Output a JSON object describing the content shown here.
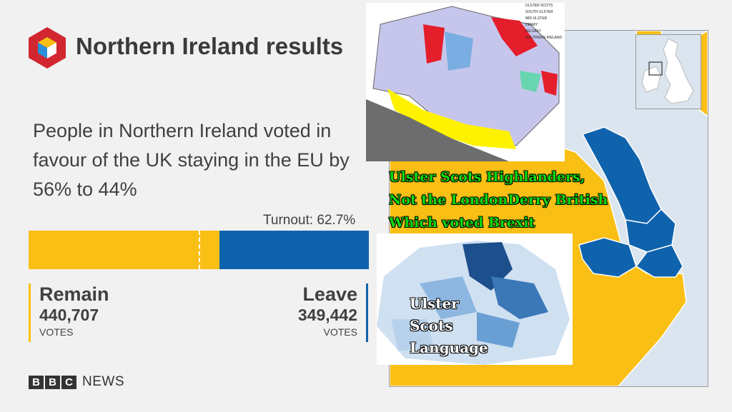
{
  "header": {
    "title": "Northern Ireland results"
  },
  "summary": {
    "text": "People in Northern Ireland voted in favour of the UK staying in the EU by 56% to 44%"
  },
  "turnout": {
    "label": "Turnout: 62.7%"
  },
  "result_bar": {
    "remain_share": 0.56,
    "remain_color": "#f9bf14",
    "leave_color": "#0f63ad"
  },
  "remain": {
    "label": "Remain",
    "votes": "440,707",
    "unit": "VOTES"
  },
  "leave": {
    "label": "Leave",
    "votes": "349,442",
    "unit": "VOTES"
  },
  "brand": {
    "letters": [
      "B",
      "B",
      "C"
    ],
    "word": "NEWS"
  },
  "legend": {
    "items": [
      "ULSTER SCOTS",
      "SOUTH ULSTER",
      "MID ULSTER",
      "DERRY",
      "BELFAST",
      "SOUTHERN IRELAND"
    ]
  },
  "overlay_caption_1": {
    "lines": [
      "Ulster Scots Highlanders,",
      "Not the LondonDerry British",
      "Which voted Brexit"
    ]
  },
  "overlay_caption_2": {
    "lines": [
      "Ulster",
      "Scots",
      "Language"
    ]
  }
}
